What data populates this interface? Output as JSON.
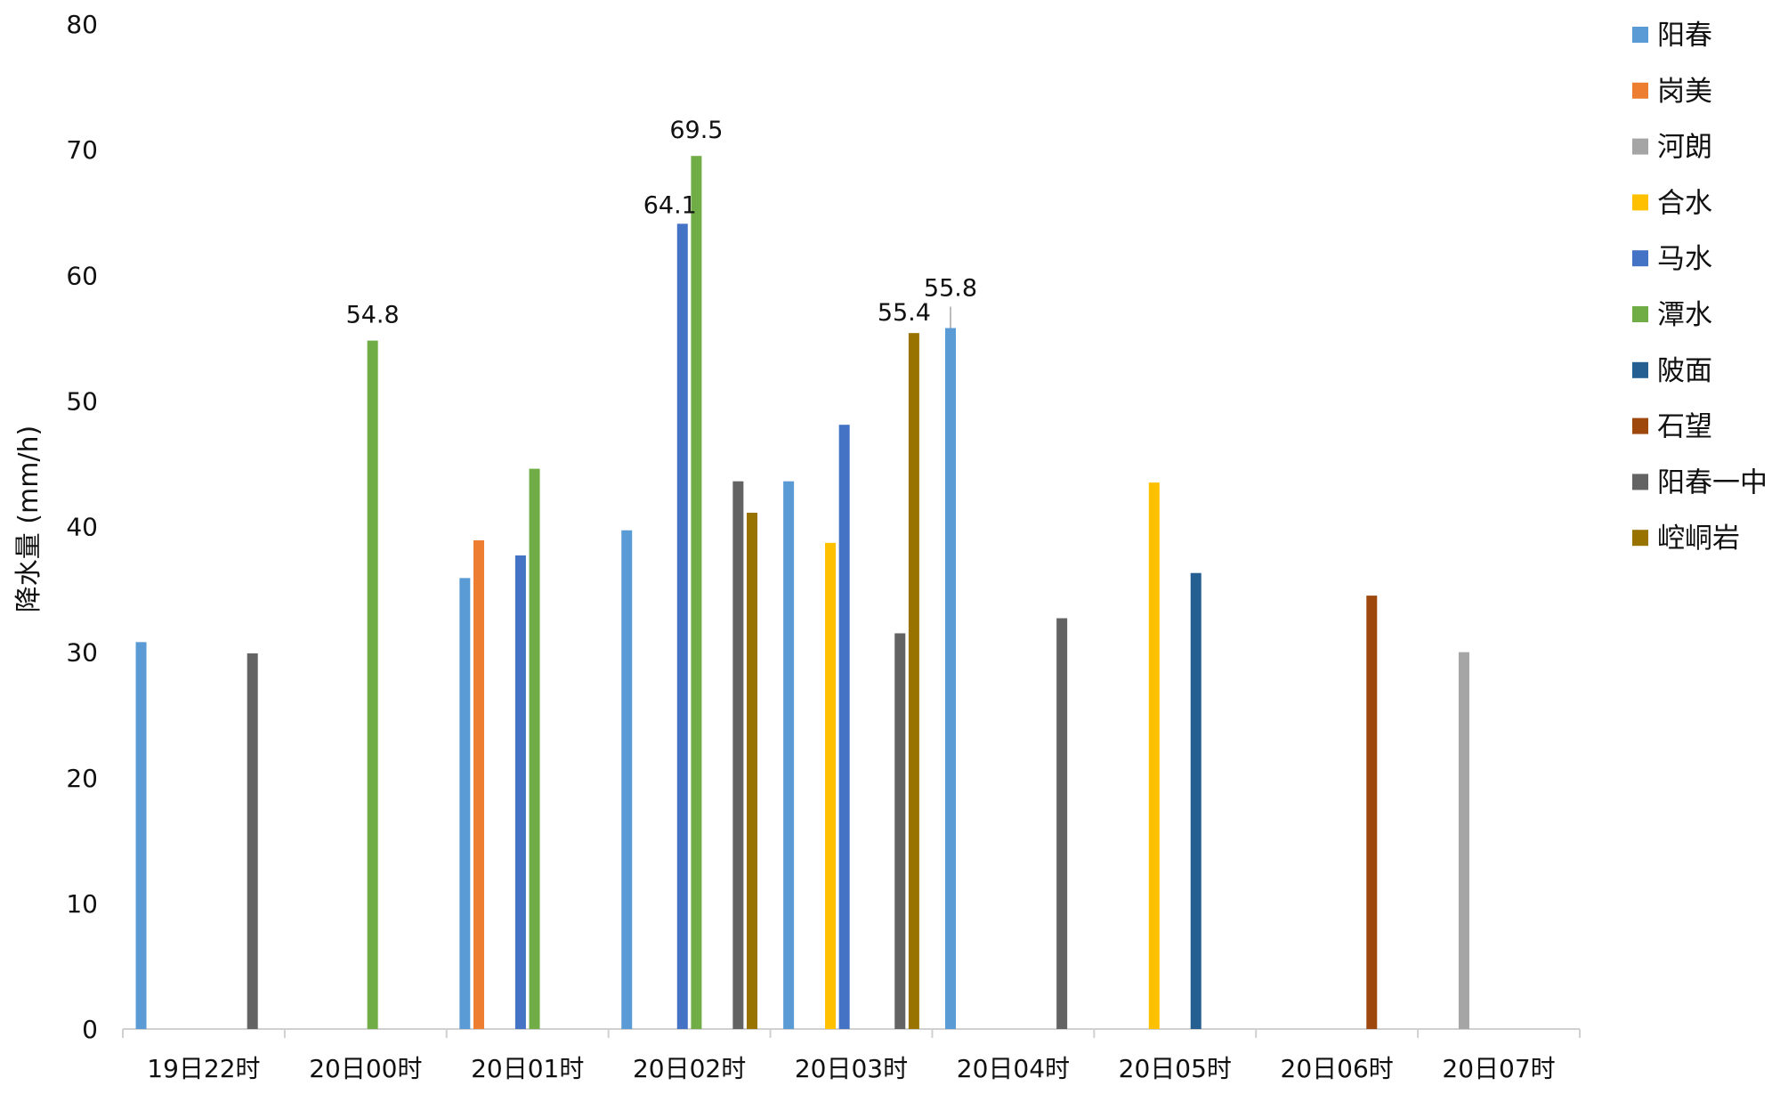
{
  "chart_data": {
    "type": "bar",
    "title": "",
    "xlabel": "",
    "ylabel": "降水量 (mm/h)",
    "ylim": [
      0,
      80
    ],
    "yticks": [
      0,
      10,
      20,
      30,
      40,
      50,
      60,
      70,
      80
    ],
    "grid": false,
    "legend_position": "right",
    "categories": [
      "19日22时",
      "20日00时",
      "20日01时",
      "20日02时",
      "20日03时",
      "20日04时",
      "20日05时",
      "20日06时",
      "20日07时"
    ],
    "series": [
      {
        "name": "阳春",
        "color": "#5B9BD5",
        "values": [
          30.8,
          null,
          35.9,
          39.7,
          43.6,
          55.8,
          null,
          null,
          null
        ]
      },
      {
        "name": "岗美",
        "color": "#ED7D31",
        "values": [
          null,
          null,
          38.9,
          null,
          null,
          null,
          null,
          null,
          null
        ]
      },
      {
        "name": "河朗",
        "color": "#A5A5A5",
        "values": [
          null,
          null,
          null,
          null,
          null,
          null,
          null,
          null,
          30.0
        ]
      },
      {
        "name": "合水",
        "color": "#FFC000",
        "values": [
          null,
          null,
          null,
          null,
          38.7,
          null,
          43.5,
          null,
          null
        ]
      },
      {
        "name": "马水",
        "color": "#4472C4",
        "values": [
          null,
          null,
          37.7,
          64.1,
          48.1,
          null,
          null,
          null,
          null
        ]
      },
      {
        "name": "潭水",
        "color": "#70AD47",
        "values": [
          null,
          54.8,
          44.6,
          69.5,
          null,
          null,
          null,
          null,
          null
        ]
      },
      {
        "name": "陂面",
        "color": "#255E91",
        "values": [
          null,
          null,
          null,
          null,
          null,
          null,
          36.3,
          null,
          null
        ]
      },
      {
        "name": "石望",
        "color": "#9E480E",
        "values": [
          null,
          null,
          null,
          null,
          null,
          null,
          null,
          34.5,
          null
        ]
      },
      {
        "name": "阳春一中",
        "color": "#636363",
        "values": [
          29.9,
          null,
          null,
          43.6,
          31.5,
          32.7,
          null,
          null,
          null
        ]
      },
      {
        "name": "崆峒岩",
        "color": "#997300",
        "values": [
          null,
          null,
          null,
          41.1,
          55.4,
          null,
          null,
          null,
          null
        ]
      }
    ],
    "data_labels": [
      {
        "series": "潭水",
        "category": "20日00时",
        "text": "54.8"
      },
      {
        "series": "马水",
        "category": "20日02时",
        "text": "64.1"
      },
      {
        "series": "潭水",
        "category": "20日02时",
        "text": "69.5"
      },
      {
        "series": "崆峒岩",
        "category": "20日03时",
        "text": "55.4"
      },
      {
        "series": "阳春",
        "category": "20日04时",
        "text": "55.8"
      }
    ]
  }
}
